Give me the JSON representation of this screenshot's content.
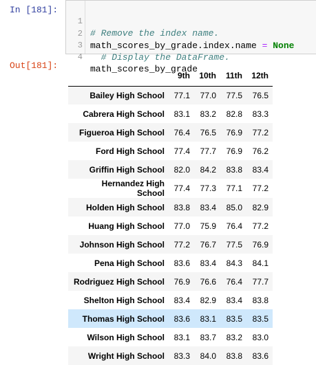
{
  "input_prompt": "In [181]:",
  "output_prompt": "Out[181]:",
  "code_lines": [
    {
      "num": "1",
      "comment": "# Remove the index name."
    },
    {
      "num": "2",
      "code": "math_scores_by_grade.index.name ",
      "op": "=",
      "keyword": " None"
    },
    {
      "num": "3",
      "comment": "  # Display the DataFrame."
    },
    {
      "num": "4",
      "code": "math_scores_by_grade"
    }
  ],
  "table": {
    "columns": [
      "9th",
      "10th",
      "11th",
      "12th"
    ],
    "rows": [
      {
        "school": "Bailey High School",
        "values": [
          "77.1",
          "77.0",
          "77.5",
          "76.5"
        ]
      },
      {
        "school": "Cabrera High School",
        "values": [
          "83.1",
          "83.2",
          "82.8",
          "83.3"
        ]
      },
      {
        "school": "Figueroa High School",
        "values": [
          "76.4",
          "76.5",
          "76.9",
          "77.2"
        ]
      },
      {
        "school": "Ford High School",
        "values": [
          "77.4",
          "77.7",
          "76.9",
          "76.2"
        ]
      },
      {
        "school": "Griffin High School",
        "values": [
          "82.0",
          "84.2",
          "83.8",
          "83.4"
        ]
      },
      {
        "school": "Hernandez High School",
        "values": [
          "77.4",
          "77.3",
          "77.1",
          "77.2"
        ]
      },
      {
        "school": "Holden High School",
        "values": [
          "83.8",
          "83.4",
          "85.0",
          "82.9"
        ]
      },
      {
        "school": "Huang High School",
        "values": [
          "77.0",
          "75.9",
          "76.4",
          "77.2"
        ]
      },
      {
        "school": "Johnson High School",
        "values": [
          "77.2",
          "76.7",
          "77.5",
          "76.9"
        ]
      },
      {
        "school": "Pena High School",
        "values": [
          "83.6",
          "83.4",
          "84.3",
          "84.1"
        ]
      },
      {
        "school": "Rodriguez High School",
        "values": [
          "76.9",
          "76.6",
          "76.4",
          "77.7"
        ]
      },
      {
        "school": "Shelton High School",
        "values": [
          "83.4",
          "82.9",
          "83.4",
          "83.8"
        ]
      },
      {
        "school": "Thomas High School",
        "values": [
          "83.6",
          "83.1",
          "83.5",
          "83.5"
        ],
        "highlighted": true
      },
      {
        "school": "Wilson High School",
        "values": [
          "83.1",
          "83.7",
          "83.2",
          "83.0"
        ]
      },
      {
        "school": "Wright High School",
        "values": [
          "83.3",
          "84.0",
          "83.8",
          "83.6"
        ]
      }
    ]
  },
  "colors": {
    "prompt_in": "#303f9f",
    "prompt_out": "#d84315",
    "comment": "#408080",
    "keyword": "#008000",
    "operator": "#aa22ff",
    "highlight_row": "#cfe8fc"
  }
}
